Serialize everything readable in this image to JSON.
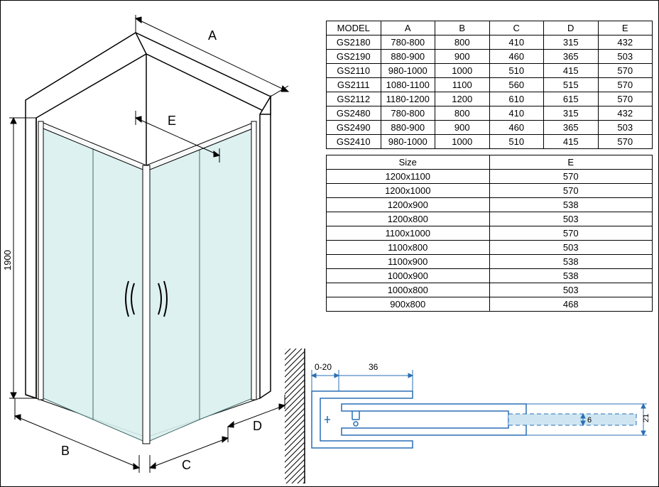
{
  "diagram": {
    "labels": {
      "A": "A",
      "B": "B",
      "C": "C",
      "D": "D",
      "E": "E",
      "height": "1900"
    },
    "stroke": "#000000",
    "glass_fill": "#d9efee",
    "glass_stroke": "#5a8a87",
    "dim_color": "#000000",
    "font_size": 14
  },
  "model_table": {
    "headers": [
      "MODEL",
      "A",
      "B",
      "C",
      "D",
      "E"
    ],
    "rows": [
      [
        "GS2180",
        "780-800",
        "800",
        "410",
        "315",
        "432"
      ],
      [
        "GS2190",
        "880-900",
        "900",
        "460",
        "365",
        "503"
      ],
      [
        "GS2110",
        "980-1000",
        "1000",
        "510",
        "415",
        "570"
      ],
      [
        "GS2111",
        "1080-1100",
        "1100",
        "560",
        "515",
        "570"
      ],
      [
        "GS2112",
        "1180-1200",
        "1200",
        "610",
        "615",
        "570"
      ],
      [
        "GS2480",
        "780-800",
        "800",
        "410",
        "315",
        "432"
      ],
      [
        "GS2490",
        "880-900",
        "900",
        "460",
        "365",
        "503"
      ],
      [
        "GS2410",
        "980-1000",
        "1000",
        "510",
        "415",
        "570"
      ]
    ]
  },
  "size_table": {
    "headers": [
      "Size",
      "E"
    ],
    "rows": [
      [
        "1200x1100",
        "570"
      ],
      [
        "1200x1000",
        "570"
      ],
      [
        "1200x900",
        "538"
      ],
      [
        "1200x800",
        "503"
      ],
      [
        "1100x1000",
        "570"
      ],
      [
        "1100x800",
        "503"
      ],
      [
        "1100x900",
        "538"
      ],
      [
        "1000x900",
        "538"
      ],
      [
        "1000x800",
        "503"
      ],
      [
        "900x800",
        "468"
      ]
    ]
  },
  "profile": {
    "gap_label": "0-20",
    "width_label": "36",
    "glass_thickness": "6",
    "profile_height": "21",
    "dim_color": "#2a6fb5",
    "hatch_color": "#000000",
    "glass_fill": "#cfe6f2",
    "stroke": "#2a6fb5"
  }
}
